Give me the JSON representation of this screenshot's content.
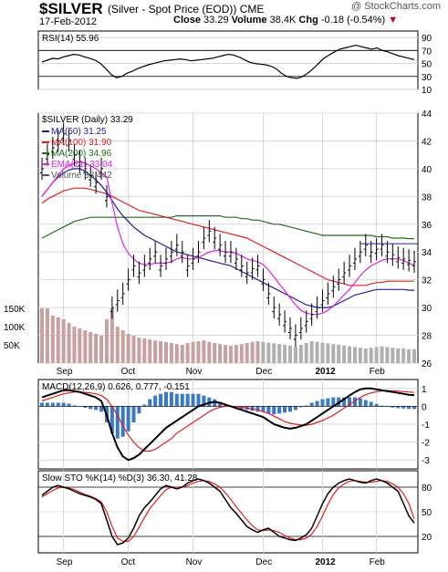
{
  "header": {
    "symbol": "$SILVER",
    "full_name": "(Silver - Spot Price (EOD))",
    "exchange": "CME",
    "date": "17-Feb-2012",
    "close_label": "Close",
    "close": "33.29",
    "volume_label": "Volume",
    "volume": "38.4K",
    "chg_label": "Chg",
    "chg": "-0.18 (-0.54%)",
    "brand": "@ StockCharts.com"
  },
  "colors": {
    "up": "#000000",
    "ma50": "#1f1f8f",
    "ma100": "#e02020",
    "ma200": "#1e6e1e",
    "ema21": "#e020e0",
    "volume": "#c8a0a0",
    "volume_gray": "#b0b0b0",
    "macd_hist": "#3a78c8",
    "grid": "#d8d8d8"
  },
  "chart_data": [
    {
      "type": "line",
      "panel": "rsi",
      "title": "RSI(14) 55.96",
      "y_ticks": [
        10,
        30,
        50,
        70,
        90
      ],
      "ylim": [
        10,
        100
      ],
      "series": [
        {
          "name": "RSI(14)",
          "values": [
            52,
            55,
            58,
            57,
            60,
            62,
            64,
            63,
            60,
            58,
            55,
            50,
            42,
            33,
            28,
            30,
            35,
            38,
            42,
            45,
            48,
            50,
            52,
            54,
            55,
            56,
            57,
            56,
            54,
            55,
            56,
            57,
            58,
            60,
            62,
            64,
            63,
            60,
            56,
            52,
            50,
            49,
            48,
            46,
            42,
            35,
            30,
            28,
            27,
            30,
            35,
            42,
            50,
            58,
            63,
            68,
            72,
            74,
            76,
            78,
            76,
            74,
            72,
            74,
            70,
            68,
            65,
            62,
            60,
            58,
            56
          ]
        }
      ],
      "reference_lines": [
        30,
        70
      ]
    },
    {
      "type": "line",
      "panel": "price",
      "title": "$SILVER (Daily) 33.29",
      "ylim": [
        26,
        44
      ],
      "y_ticks": [
        26,
        28,
        30,
        32,
        34,
        36,
        38,
        40,
        42,
        44
      ],
      "x_ticks": [
        "Sep",
        "Oct",
        "Nov",
        "Dec",
        "2012",
        "Feb"
      ],
      "legend": [
        {
          "name": "MA(50) 31.25",
          "color_key": "ma50"
        },
        {
          "name": "MA(100) 31.90",
          "color_key": "ma100"
        },
        {
          "name": "MA(200) 34.96",
          "color_key": "ma200"
        },
        {
          "name": "EMA(21) 33.04",
          "color_key": "ema21"
        },
        {
          "name": "Volume 38,442",
          "color_key": "volume_gray"
        }
      ],
      "volume_ticks": [
        "50K",
        "100K",
        "150K"
      ],
      "series": [
        {
          "name": "Price",
          "values": [
            40,
            41,
            41.5,
            42,
            42.5,
            42,
            41,
            40.5,
            40,
            39.5,
            39,
            40,
            38,
            30,
            30.5,
            31,
            32,
            33,
            32.5,
            33,
            33.5,
            34,
            33,
            33.5,
            34,
            34.5,
            34,
            33,
            33.5,
            34,
            35,
            35.5,
            35,
            34.5,
            34,
            34,
            33.5,
            33,
            32.5,
            32.8,
            33,
            32,
            31,
            30,
            29.5,
            29,
            28.5,
            28,
            28.5,
            29,
            29.5,
            30,
            30.5,
            31,
            31.5,
            32,
            32.5,
            33,
            33.5,
            34,
            34.5,
            34,
            34.2,
            34.5,
            34,
            33.8,
            33.6,
            33.5,
            33.4,
            33.3
          ]
        },
        {
          "name": "MA(50)",
          "values": [
            38,
            38.5,
            39,
            39.4,
            39.7,
            39.9,
            40,
            40,
            39.8,
            39.5,
            39.2,
            38.8,
            38.3,
            37.7,
            37.1,
            36.6,
            36.2,
            35.8,
            35.5,
            35.2,
            35,
            34.8,
            34.6,
            34.4,
            34.2,
            34,
            33.9,
            33.8,
            33.7,
            33.6,
            33.5,
            33.4,
            33.3,
            33.2,
            33.1,
            33,
            32.8,
            32.6,
            32.4,
            32.2,
            32,
            31.8,
            31.6,
            31.4,
            31.2,
            31,
            30.8,
            30.6,
            30.4,
            30.2,
            30.1,
            30,
            30,
            30,
            30.1,
            30.3,
            30.5,
            30.7,
            30.9,
            31,
            31.1,
            31.2,
            31.3,
            31.3,
            31.3,
            31.3,
            31.3,
            31.3,
            31.25,
            31.25
          ]
        },
        {
          "name": "MA(100)",
          "values": [
            37.5,
            37.8,
            38,
            38.2,
            38.4,
            38.5,
            38.6,
            38.6,
            38.6,
            38.5,
            38.4,
            38.3,
            38.2,
            38,
            37.8,
            37.6,
            37.4,
            37.2,
            37,
            36.9,
            36.8,
            36.7,
            36.6,
            36.5,
            36.4,
            36.3,
            36.2,
            36.1,
            36,
            35.9,
            35.8,
            35.7,
            35.6,
            35.5,
            35.4,
            35.3,
            35.2,
            35.1,
            35,
            34.8,
            34.6,
            34.4,
            34.2,
            34,
            33.8,
            33.6,
            33.4,
            33.2,
            33,
            32.8,
            32.6,
            32.4,
            32.2,
            32,
            31.9,
            31.8,
            31.7,
            31.6,
            31.6,
            31.6,
            31.6,
            31.7,
            31.8,
            31.8,
            31.9,
            31.9,
            31.9,
            31.9,
            31.9,
            31.9
          ]
        },
        {
          "name": "MA(200)",
          "values": [
            35,
            35.2,
            35.4,
            35.6,
            35.8,
            36,
            36.2,
            36.3,
            36.4,
            36.5,
            36.5,
            36.5,
            36.5,
            36.5,
            36.5,
            36.5,
            36.5,
            36.5,
            36.5,
            36.5,
            36.5,
            36.5,
            36.5,
            36.5,
            36.5,
            36.6,
            36.6,
            36.6,
            36.6,
            36.6,
            36.6,
            36.6,
            36.6,
            36.6,
            36.5,
            36.5,
            36.5,
            36.4,
            36.4,
            36.3,
            36.3,
            36.2,
            36.1,
            36,
            36,
            35.9,
            35.8,
            35.7,
            35.6,
            35.5,
            35.4,
            35.3,
            35.2,
            35.2,
            35.2,
            35.2,
            35.2,
            35.2,
            35.2,
            35.2,
            35.2,
            35.2,
            35.1,
            35.1,
            35.1,
            35,
            35,
            35,
            34.96,
            34.96
          ]
        },
        {
          "name": "EMA(21)",
          "values": [
            38,
            38.5,
            39,
            39.5,
            40,
            40.2,
            40.4,
            40.5,
            40.4,
            40.2,
            40,
            39.7,
            39.4,
            37.5,
            35.8,
            34.6,
            33.9,
            33.5,
            33.2,
            33.1,
            33.1,
            33.2,
            33.2,
            33.2,
            33.3,
            33.5,
            33.6,
            33.5,
            33.5,
            33.6,
            33.8,
            34,
            34.1,
            34.1,
            34,
            34,
            33.9,
            33.7,
            33.5,
            33.4,
            33.3,
            33.1,
            32.7,
            32.2,
            31.7,
            31.2,
            30.7,
            30.2,
            29.8,
            29.6,
            29.5,
            29.5,
            29.6,
            29.8,
            30.1,
            30.5,
            30.9,
            31.3,
            31.8,
            32.3,
            32.7,
            33,
            33.2,
            33.4,
            33.5,
            33.5,
            33.5,
            33.4,
            33.2,
            33.04
          ]
        }
      ],
      "volume": [
        150,
        150,
        130,
        125,
        120,
        110,
        100,
        95,
        90,
        85,
        80,
        75,
        120,
        150,
        100,
        90,
        80,
        75,
        70,
        68,
        65,
        62,
        60,
        58,
        55,
        52,
        50,
        55,
        58,
        60,
        62,
        58,
        55,
        52,
        50,
        48,
        50,
        52,
        55,
        58,
        60,
        58,
        56,
        54,
        52,
        50,
        48,
        46,
        50,
        55,
        60,
        58,
        56,
        54,
        52,
        50,
        48,
        46,
        44,
        42,
        40,
        42,
        44,
        46,
        44,
        42,
        40,
        40,
        38,
        38
      ]
    },
    {
      "type": "line",
      "panel": "macd",
      "title": "MACD(12,26,9) 0.626, 0.777, -0.151",
      "ylim": [
        -3.5,
        1.5
      ],
      "y_ticks": [
        -3,
        -2,
        -1,
        0,
        1
      ],
      "series": [
        {
          "name": "MACD",
          "values": [
            0.5,
            0.6,
            0.7,
            0.8,
            0.9,
            0.9,
            0.85,
            0.8,
            0.7,
            0.6,
            0.5,
            0.3,
            -0.5,
            -1.5,
            -2.3,
            -2.8,
            -3,
            -2.9,
            -2.7,
            -2.4,
            -2.1,
            -1.8,
            -1.5,
            -1.2,
            -1,
            -0.8,
            -0.6,
            -0.4,
            -0.2,
            0,
            0.1,
            0.2,
            0.25,
            0.2,
            0.1,
            0,
            -0.1,
            -0.2,
            -0.3,
            -0.4,
            -0.5,
            -0.6,
            -0.8,
            -1,
            -1.1,
            -1.2,
            -1.25,
            -1.2,
            -1.1,
            -1,
            -0.8,
            -0.6,
            -0.4,
            -0.2,
            0,
            0.2,
            0.4,
            0.6,
            0.8,
            0.95,
            1,
            1,
            0.95,
            0.9,
            0.85,
            0.8,
            0.75,
            0.7,
            0.65,
            0.626
          ]
        },
        {
          "name": "Signal",
          "values": [
            0.3,
            0.4,
            0.5,
            0.6,
            0.7,
            0.75,
            0.8,
            0.8,
            0.78,
            0.75,
            0.7,
            0.6,
            0.4,
            0,
            -0.5,
            -1.1,
            -1.6,
            -2,
            -2.3,
            -2.5,
            -2.5,
            -2.4,
            -2.2,
            -2,
            -1.8,
            -1.5,
            -1.3,
            -1.1,
            -0.9,
            -0.7,
            -0.5,
            -0.3,
            -0.15,
            -0.05,
            0,
            0,
            -0.02,
            -0.05,
            -0.1,
            -0.15,
            -0.2,
            -0.3,
            -0.4,
            -0.55,
            -0.7,
            -0.85,
            -0.95,
            -1,
            -1.05,
            -1.05,
            -1,
            -0.9,
            -0.8,
            -0.65,
            -0.5,
            -0.3,
            -0.1,
            0.1,
            0.3,
            0.5,
            0.65,
            0.75,
            0.82,
            0.86,
            0.88,
            0.87,
            0.85,
            0.82,
            0.8,
            0.777
          ]
        }
      ]
    },
    {
      "type": "line",
      "panel": "sto",
      "title": "Slow STO %K(14) %D(3) 36.30, 41.28",
      "ylim": [
        0,
        100
      ],
      "y_ticks": [
        20,
        50,
        80
      ],
      "series": [
        {
          "name": "%K",
          "values": [
            70,
            75,
            80,
            82,
            80,
            78,
            75,
            72,
            70,
            68,
            65,
            60,
            40,
            20,
            10,
            12,
            18,
            30,
            45,
            55,
            62,
            70,
            78,
            82,
            80,
            78,
            80,
            85,
            88,
            90,
            88,
            85,
            80,
            75,
            65,
            55,
            48,
            40,
            32,
            28,
            25,
            28,
            30,
            25,
            20,
            18,
            16,
            15,
            18,
            22,
            30,
            45,
            60,
            72,
            80,
            85,
            88,
            90,
            88,
            86,
            85,
            88,
            90,
            88,
            85,
            80,
            75,
            60,
            45,
            36.3
          ]
        },
        {
          "name": "%D",
          "values": [
            68,
            72,
            76,
            79,
            80,
            79,
            77,
            74,
            71,
            69,
            66,
            62,
            50,
            32,
            18,
            14,
            14,
            20,
            31,
            43,
            54,
            62,
            70,
            77,
            80,
            80,
            80,
            82,
            85,
            87,
            88,
            87,
            84,
            80,
            73,
            65,
            56,
            48,
            40,
            33,
            28,
            27,
            28,
            27,
            25,
            21,
            18,
            16,
            16,
            18,
            23,
            32,
            45,
            59,
            71,
            79,
            84,
            87,
            88,
            87,
            86,
            86,
            87,
            88,
            87,
            84,
            80,
            72,
            60,
            41.28
          ]
        }
      ]
    }
  ]
}
